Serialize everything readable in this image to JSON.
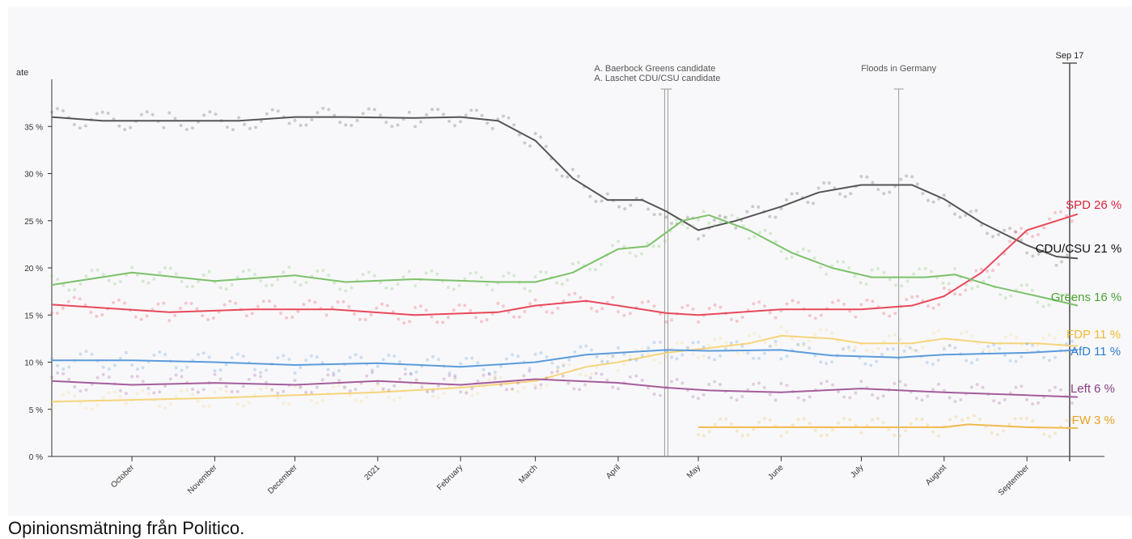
{
  "caption": "Opinionsmätning från Politico.",
  "chart_data": {
    "type": "line",
    "ylabel_fragment": "ate",
    "ylim": [
      0,
      40
    ],
    "y_ticks": [
      {
        "value": 0,
        "label": "0 %"
      },
      {
        "value": 5,
        "label": "5 %"
      },
      {
        "value": 10,
        "label": "10 %"
      },
      {
        "value": 15,
        "label": "15 %"
      },
      {
        "value": 20,
        "label": "20 %"
      },
      {
        "value": 25,
        "label": "25 %"
      },
      {
        "value": 30,
        "label": "30 %"
      },
      {
        "value": 35,
        "label": "35 %"
      }
    ],
    "x_start": "2020-09-01",
    "x_end": "2021-09-27",
    "x_ticks": [
      {
        "date": "2020-10-01",
        "label": "October"
      },
      {
        "date": "2020-11-01",
        "label": "November"
      },
      {
        "date": "2020-12-01",
        "label": "December"
      },
      {
        "date": "2021-01-01",
        "label": "2021"
      },
      {
        "date": "2021-02-01",
        "label": "February"
      },
      {
        "date": "2021-03-01",
        "label": "March"
      },
      {
        "date": "2021-04-01",
        "label": "April"
      },
      {
        "date": "2021-05-01",
        "label": "May"
      },
      {
        "date": "2021-06-01",
        "label": "June"
      },
      {
        "date": "2021-07-01",
        "label": "July"
      },
      {
        "date": "2021-08-01",
        "label": "August"
      },
      {
        "date": "2021-09-01",
        "label": "September"
      }
    ],
    "annotations": [
      {
        "date": "2021-04-19",
        "lines": [
          "A. Baerbock Greens candidate",
          "A. Laschet CDU/CSU candidate"
        ],
        "style": "double"
      },
      {
        "date": "2021-07-15",
        "lines": [
          "Floods in Germany"
        ],
        "style": "single"
      },
      {
        "date": "2021-09-17",
        "lines": [
          "Sep 17"
        ],
        "style": "bold"
      }
    ],
    "series": [
      {
        "name": "CDU/CSU",
        "end_label": "CDU/CSU",
        "end_value_label": "21 %",
        "color": "#555555",
        "label_color": "#111111",
        "points": [
          [
            "2020-09-01",
            36
          ],
          [
            "2020-09-20",
            35.6
          ],
          [
            "2020-10-15",
            35.6
          ],
          [
            "2020-11-10",
            35.6
          ],
          [
            "2020-12-01",
            36
          ],
          [
            "2020-12-20",
            36
          ],
          [
            "2021-01-15",
            35.9
          ],
          [
            "2021-02-01",
            36
          ],
          [
            "2021-02-15",
            35.6
          ],
          [
            "2021-03-01",
            33.5
          ],
          [
            "2021-03-15",
            29.5
          ],
          [
            "2021-03-28",
            27.2
          ],
          [
            "2021-04-10",
            27.2
          ],
          [
            "2021-04-19",
            26
          ],
          [
            "2021-05-01",
            24
          ],
          [
            "2021-05-15",
            25
          ],
          [
            "2021-06-01",
            26.5
          ],
          [
            "2021-06-15",
            28
          ],
          [
            "2021-07-01",
            28.8
          ],
          [
            "2021-07-20",
            28.8
          ],
          [
            "2021-08-01",
            27.3
          ],
          [
            "2021-08-15",
            24.8
          ],
          [
            "2021-09-01",
            22.4
          ],
          [
            "2021-09-12",
            21.2
          ],
          [
            "2021-09-20",
            21
          ]
        ]
      },
      {
        "name": "SPD",
        "end_label": "SPD",
        "end_value_label": "26 %",
        "color": "#e9485a",
        "label_color": "#e0233a",
        "points": [
          [
            "2020-09-01",
            16.1
          ],
          [
            "2020-10-15",
            15.3
          ],
          [
            "2020-11-15",
            15.6
          ],
          [
            "2020-12-15",
            15.6
          ],
          [
            "2021-01-15",
            15
          ],
          [
            "2021-02-15",
            15.3
          ],
          [
            "2021-03-01",
            16
          ],
          [
            "2021-03-20",
            16.5
          ],
          [
            "2021-04-01",
            16
          ],
          [
            "2021-04-19",
            15.2
          ],
          [
            "2021-05-01",
            15
          ],
          [
            "2021-06-01",
            15.6
          ],
          [
            "2021-07-01",
            15.6
          ],
          [
            "2021-07-20",
            16
          ],
          [
            "2021-08-01",
            17
          ],
          [
            "2021-08-15",
            19.5
          ],
          [
            "2021-09-01",
            24
          ],
          [
            "2021-09-20",
            25.7
          ]
        ]
      },
      {
        "name": "Greens",
        "end_label": "Greens",
        "end_value_label": "16 %",
        "color": "#7cc16a",
        "label_color": "#4aa332",
        "points": [
          [
            "2020-09-01",
            18.2
          ],
          [
            "2020-10-01",
            19.5
          ],
          [
            "2020-11-01",
            18.6
          ],
          [
            "2020-12-01",
            19.2
          ],
          [
            "2020-12-20",
            18.5
          ],
          [
            "2021-01-15",
            18.8
          ],
          [
            "2021-02-15",
            18.5
          ],
          [
            "2021-03-01",
            18.5
          ],
          [
            "2021-03-15",
            19.5
          ],
          [
            "2021-04-01",
            22
          ],
          [
            "2021-04-12",
            22.3
          ],
          [
            "2021-04-25",
            25
          ],
          [
            "2021-05-05",
            25.6
          ],
          [
            "2021-05-20",
            24
          ],
          [
            "2021-06-05",
            21.6
          ],
          [
            "2021-06-20",
            20
          ],
          [
            "2021-07-05",
            19
          ],
          [
            "2021-07-25",
            19
          ],
          [
            "2021-08-05",
            19.3
          ],
          [
            "2021-08-20",
            18
          ],
          [
            "2021-09-05",
            17
          ],
          [
            "2021-09-20",
            16
          ]
        ]
      },
      {
        "name": "FDP",
        "end_label": "FDP",
        "end_value_label": "11 %",
        "color": "#f6d47c",
        "label_color": "#f2bb30",
        "points": [
          [
            "2020-09-01",
            5.8
          ],
          [
            "2020-10-01",
            6
          ],
          [
            "2020-11-01",
            6.2
          ],
          [
            "2020-12-01",
            6.5
          ],
          [
            "2021-01-01",
            6.8
          ],
          [
            "2021-02-01",
            7.3
          ],
          [
            "2021-03-01",
            8
          ],
          [
            "2021-03-20",
            9.5
          ],
          [
            "2021-04-01",
            10
          ],
          [
            "2021-04-19",
            11
          ],
          [
            "2021-05-05",
            11.5
          ],
          [
            "2021-05-20",
            12
          ],
          [
            "2021-06-01",
            12.8
          ],
          [
            "2021-06-20",
            12.5
          ],
          [
            "2021-07-01",
            12
          ],
          [
            "2021-07-20",
            12
          ],
          [
            "2021-08-01",
            12.5
          ],
          [
            "2021-08-20",
            12
          ],
          [
            "2021-09-05",
            12
          ],
          [
            "2021-09-20",
            11.7
          ]
        ]
      },
      {
        "name": "AfD",
        "end_label": "AfD",
        "end_value_label": "11 %",
        "color": "#5b9bdc",
        "label_color": "#2e7cd0",
        "points": [
          [
            "2020-09-01",
            10.2
          ],
          [
            "2020-10-01",
            10.2
          ],
          [
            "2020-11-01",
            10
          ],
          [
            "2020-12-01",
            9.7
          ],
          [
            "2021-01-01",
            9.9
          ],
          [
            "2021-02-01",
            9.5
          ],
          [
            "2021-03-01",
            10
          ],
          [
            "2021-03-20",
            10.8
          ],
          [
            "2021-04-01",
            11
          ],
          [
            "2021-04-19",
            11.3
          ],
          [
            "2021-05-05",
            11.2
          ],
          [
            "2021-06-01",
            11.3
          ],
          [
            "2021-06-20",
            10.7
          ],
          [
            "2021-07-15",
            10.5
          ],
          [
            "2021-08-01",
            10.8
          ],
          [
            "2021-09-01",
            11
          ],
          [
            "2021-09-20",
            11.3
          ]
        ]
      },
      {
        "name": "Left",
        "end_label": "Left",
        "end_value_label": "6 %",
        "color": "#a55c9c",
        "label_color": "#8c3f84",
        "points": [
          [
            "2020-09-01",
            8
          ],
          [
            "2020-10-01",
            7.6
          ],
          [
            "2020-11-01",
            7.8
          ],
          [
            "2020-12-01",
            7.6
          ],
          [
            "2021-01-01",
            8
          ],
          [
            "2021-02-01",
            7.6
          ],
          [
            "2021-03-01",
            8.2
          ],
          [
            "2021-04-01",
            7.8
          ],
          [
            "2021-04-19",
            7.3
          ],
          [
            "2021-05-05",
            7
          ],
          [
            "2021-06-01",
            6.8
          ],
          [
            "2021-07-01",
            7.2
          ],
          [
            "2021-08-01",
            6.8
          ],
          [
            "2021-09-01",
            6.5
          ],
          [
            "2021-09-20",
            6.3
          ]
        ]
      },
      {
        "name": "FW",
        "end_label": "FW",
        "end_value_label": "3 %",
        "color": "#f2b94e",
        "label_color": "#e8a323",
        "points": [
          [
            "2021-05-01",
            3.1
          ],
          [
            "2021-06-01",
            3.1
          ],
          [
            "2021-07-01",
            3.1
          ],
          [
            "2021-08-01",
            3.1
          ],
          [
            "2021-08-10",
            3.4
          ],
          [
            "2021-09-01",
            3.1
          ],
          [
            "2021-09-20",
            3
          ]
        ]
      }
    ]
  }
}
